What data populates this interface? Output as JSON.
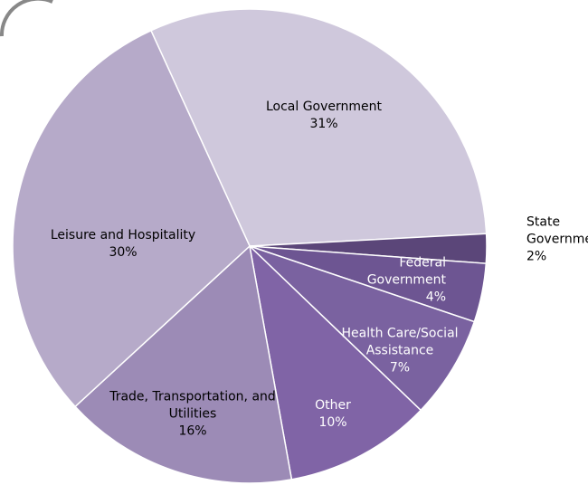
{
  "chart_data": {
    "type": "pie",
    "categories": [
      "Local Government",
      "State Government",
      "Federal Government",
      "Health Care/Social Assistance",
      "Other",
      "Trade, Transportation, and Utilities",
      "Leisure and Hospitality"
    ],
    "values": [
      31,
      2,
      4,
      7,
      10,
      16,
      30
    ],
    "value_labels": [
      "31%",
      "2%",
      "4%",
      "7%",
      "10%",
      "16%",
      "30%"
    ],
    "colors": [
      "#cfc8dc",
      "#5b4679",
      "#6d5592",
      "#7a62a0",
      "#8064a6",
      "#9c8bb6",
      "#b6aac9"
    ]
  }
}
